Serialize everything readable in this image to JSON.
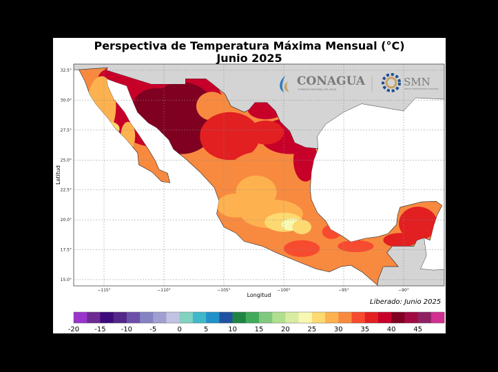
{
  "title": "Perspectiva de Temperatura Máxima Mensual (°C)",
  "subtitle": "Junio 2025",
  "released": "Liberado: Junio 2025",
  "map": {
    "xlabel": "Longitud",
    "ylabel": "Latitud",
    "lon_ticks": [
      "−115°",
      "−110°",
      "−105°",
      "−100°",
      "−95°",
      "−90°"
    ],
    "lat_ticks": [
      "32.5°",
      "30.0°",
      "27.5°",
      "25.0°",
      "22.5°",
      "20.0°",
      "17.5°",
      "15.0°"
    ],
    "colors": {
      "ocean": "#ffffff",
      "other_land": "#d4d4d4",
      "grid": "#888888"
    }
  },
  "logos": {
    "conagua": "CONAGUA",
    "conagua_sub": "COMISIÓN NACIONAL DEL AGUA",
    "smn": "SMN",
    "smn_sub": "SERVICIO METEOROLÓGICO NACIONAL"
  },
  "colorbar": {
    "unit": "°C",
    "min": -20,
    "max": 50,
    "step": 2.5,
    "tick_labels": [
      "-20",
      "-15",
      "-10",
      "-5",
      "0",
      "5",
      "10",
      "15",
      "20",
      "25",
      "30",
      "35",
      "40",
      "45"
    ],
    "colors": [
      "#9a34cc",
      "#6c2a92",
      "#3c0a7a",
      "#532689",
      "#6b4fa8",
      "#8583c2",
      "#a19ed1",
      "#c2c2e2",
      "#82d2c0",
      "#41b8c9",
      "#2092c9",
      "#2152a1",
      "#1f8441",
      "#41aa5a",
      "#80c87f",
      "#b1df90",
      "#d8eca2",
      "#f7f8b2",
      "#fdd972",
      "#fdb24f",
      "#f88a40",
      "#f74b2f",
      "#e21f21",
      "#c7002a",
      "#7f0021",
      "#a10a41",
      "#8f2062",
      "#d0308f"
    ]
  }
}
